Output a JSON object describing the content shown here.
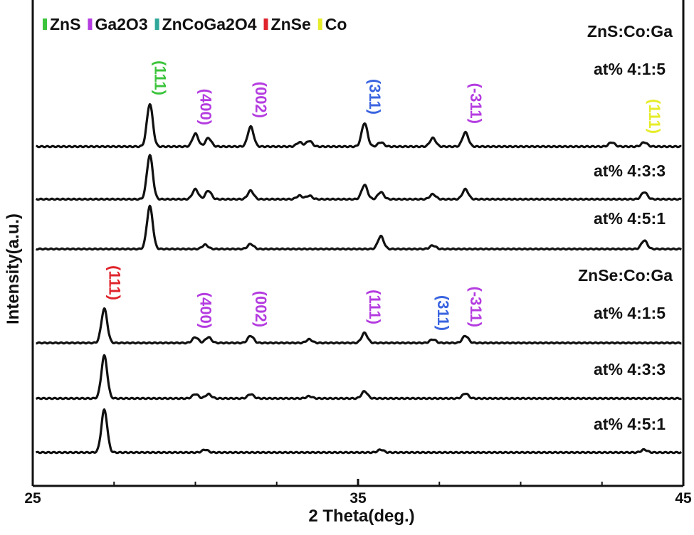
{
  "chart_data": {
    "type": "line",
    "title": "",
    "xlabel": "2 Theta(deg.)",
    "ylabel": "Intensity(a.u.)",
    "xlim": [
      25,
      45
    ],
    "xticks": [
      "25",
      "35",
      "45"
    ],
    "legend": {
      "placement": "top-left",
      "items": [
        {
          "label": "ZnS",
          "color": "#3cc43c"
        },
        {
          "label": "Ga2O3",
          "color": "#b43ce0"
        },
        {
          "label": "ZnCoGa2O4",
          "color": "#2fa79a"
        },
        {
          "label": "ZnSe",
          "color": "#e0242c"
        },
        {
          "label": "Co",
          "color": "#e6ec2a"
        }
      ]
    },
    "group_labels": [
      {
        "id": "zns",
        "text": "ZnS:Co:Ga"
      },
      {
        "id": "znse",
        "text": "ZnSe:Co:Ga"
      }
    ],
    "series": [
      {
        "name": "ZnS:Co:Ga at% 4:1:5",
        "label": "at% 4:1:5",
        "peaks": [
          [
            28.6,
            60
          ],
          [
            30.0,
            18
          ],
          [
            30.4,
            12
          ],
          [
            31.7,
            28
          ],
          [
            33.2,
            6
          ],
          [
            33.5,
            8
          ],
          [
            35.2,
            33
          ],
          [
            35.7,
            6
          ],
          [
            37.3,
            12
          ],
          [
            38.3,
            20
          ],
          [
            42.8,
            6
          ],
          [
            43.8,
            6
          ]
        ]
      },
      {
        "name": "ZnS:Co:Ga at% 4:3:3",
        "label": "at% 4:3:3",
        "peaks": [
          [
            28.6,
            62
          ],
          [
            30.0,
            14
          ],
          [
            30.4,
            12
          ],
          [
            31.7,
            12
          ],
          [
            33.2,
            5
          ],
          [
            33.5,
            5
          ],
          [
            35.2,
            20
          ],
          [
            35.7,
            10
          ],
          [
            37.3,
            7
          ],
          [
            38.3,
            14
          ],
          [
            43.8,
            10
          ]
        ]
      },
      {
        "name": "ZnS:Co:Ga at% 4:5:1",
        "label": "at% 4:5:1",
        "peaks": [
          [
            28.6,
            60
          ],
          [
            30.3,
            6
          ],
          [
            31.7,
            7
          ],
          [
            35.7,
            18
          ],
          [
            37.3,
            5
          ],
          [
            43.8,
            12
          ]
        ]
      },
      {
        "name": "ZnSe:Co:Ga at% 4:1:5",
        "label": "at% 4:1:5",
        "peaks": [
          [
            27.2,
            48
          ],
          [
            30.0,
            8
          ],
          [
            30.4,
            8
          ],
          [
            31.7,
            10
          ],
          [
            33.5,
            5
          ],
          [
            35.2,
            14
          ],
          [
            37.3,
            5
          ],
          [
            38.3,
            10
          ]
        ]
      },
      {
        "name": "ZnSe:Co:Ga at% 4:3:3",
        "label": "at% 4:3:3",
        "peaks": [
          [
            27.2,
            60
          ],
          [
            30.0,
            6
          ],
          [
            30.4,
            6
          ],
          [
            31.7,
            6
          ],
          [
            33.5,
            3
          ],
          [
            35.2,
            10
          ],
          [
            38.3,
            7
          ]
        ]
      },
      {
        "name": "ZnSe:Co:Ga at% 4:5:1",
        "label": "at% 4:5:1",
        "peaks": [
          [
            27.2,
            60
          ],
          [
            30.3,
            4
          ],
          [
            35.7,
            4
          ],
          [
            43.8,
            4
          ]
        ]
      }
    ],
    "annotations": [
      {
        "text": "(111)",
        "x": 28.6,
        "series": 0,
        "color": "#3cc43c"
      },
      {
        "text": "(400)",
        "x": 30.0,
        "series": 0,
        "color": "#b43ce0"
      },
      {
        "text": "(002)",
        "x": 31.7,
        "series": 0,
        "color": "#b43ce0"
      },
      {
        "text": "(311)",
        "x": 35.2,
        "series": 0,
        "color": "#3a64e0"
      },
      {
        "text": "(-311)",
        "x": 38.3,
        "series": 0,
        "color": "#b43ce0"
      },
      {
        "text": "(111)",
        "x": 43.8,
        "series": 0,
        "color": "#e6ec2a"
      },
      {
        "text": "(111)",
        "x": 27.2,
        "series": 3,
        "color": "#e0242c"
      },
      {
        "text": "(400)",
        "x": 30.0,
        "series": 3,
        "color": "#b43ce0"
      },
      {
        "text": "(002)",
        "x": 31.7,
        "series": 3,
        "color": "#b43ce0"
      },
      {
        "text": "(111)",
        "x": 35.2,
        "series": 3,
        "color": "#b43ce0"
      },
      {
        "text": "(311)",
        "x": 37.3,
        "series": 3,
        "color": "#3a64e0"
      },
      {
        "text": "(-311)",
        "x": 38.3,
        "series": 3,
        "color": "#b43ce0"
      }
    ],
    "grid": false
  }
}
